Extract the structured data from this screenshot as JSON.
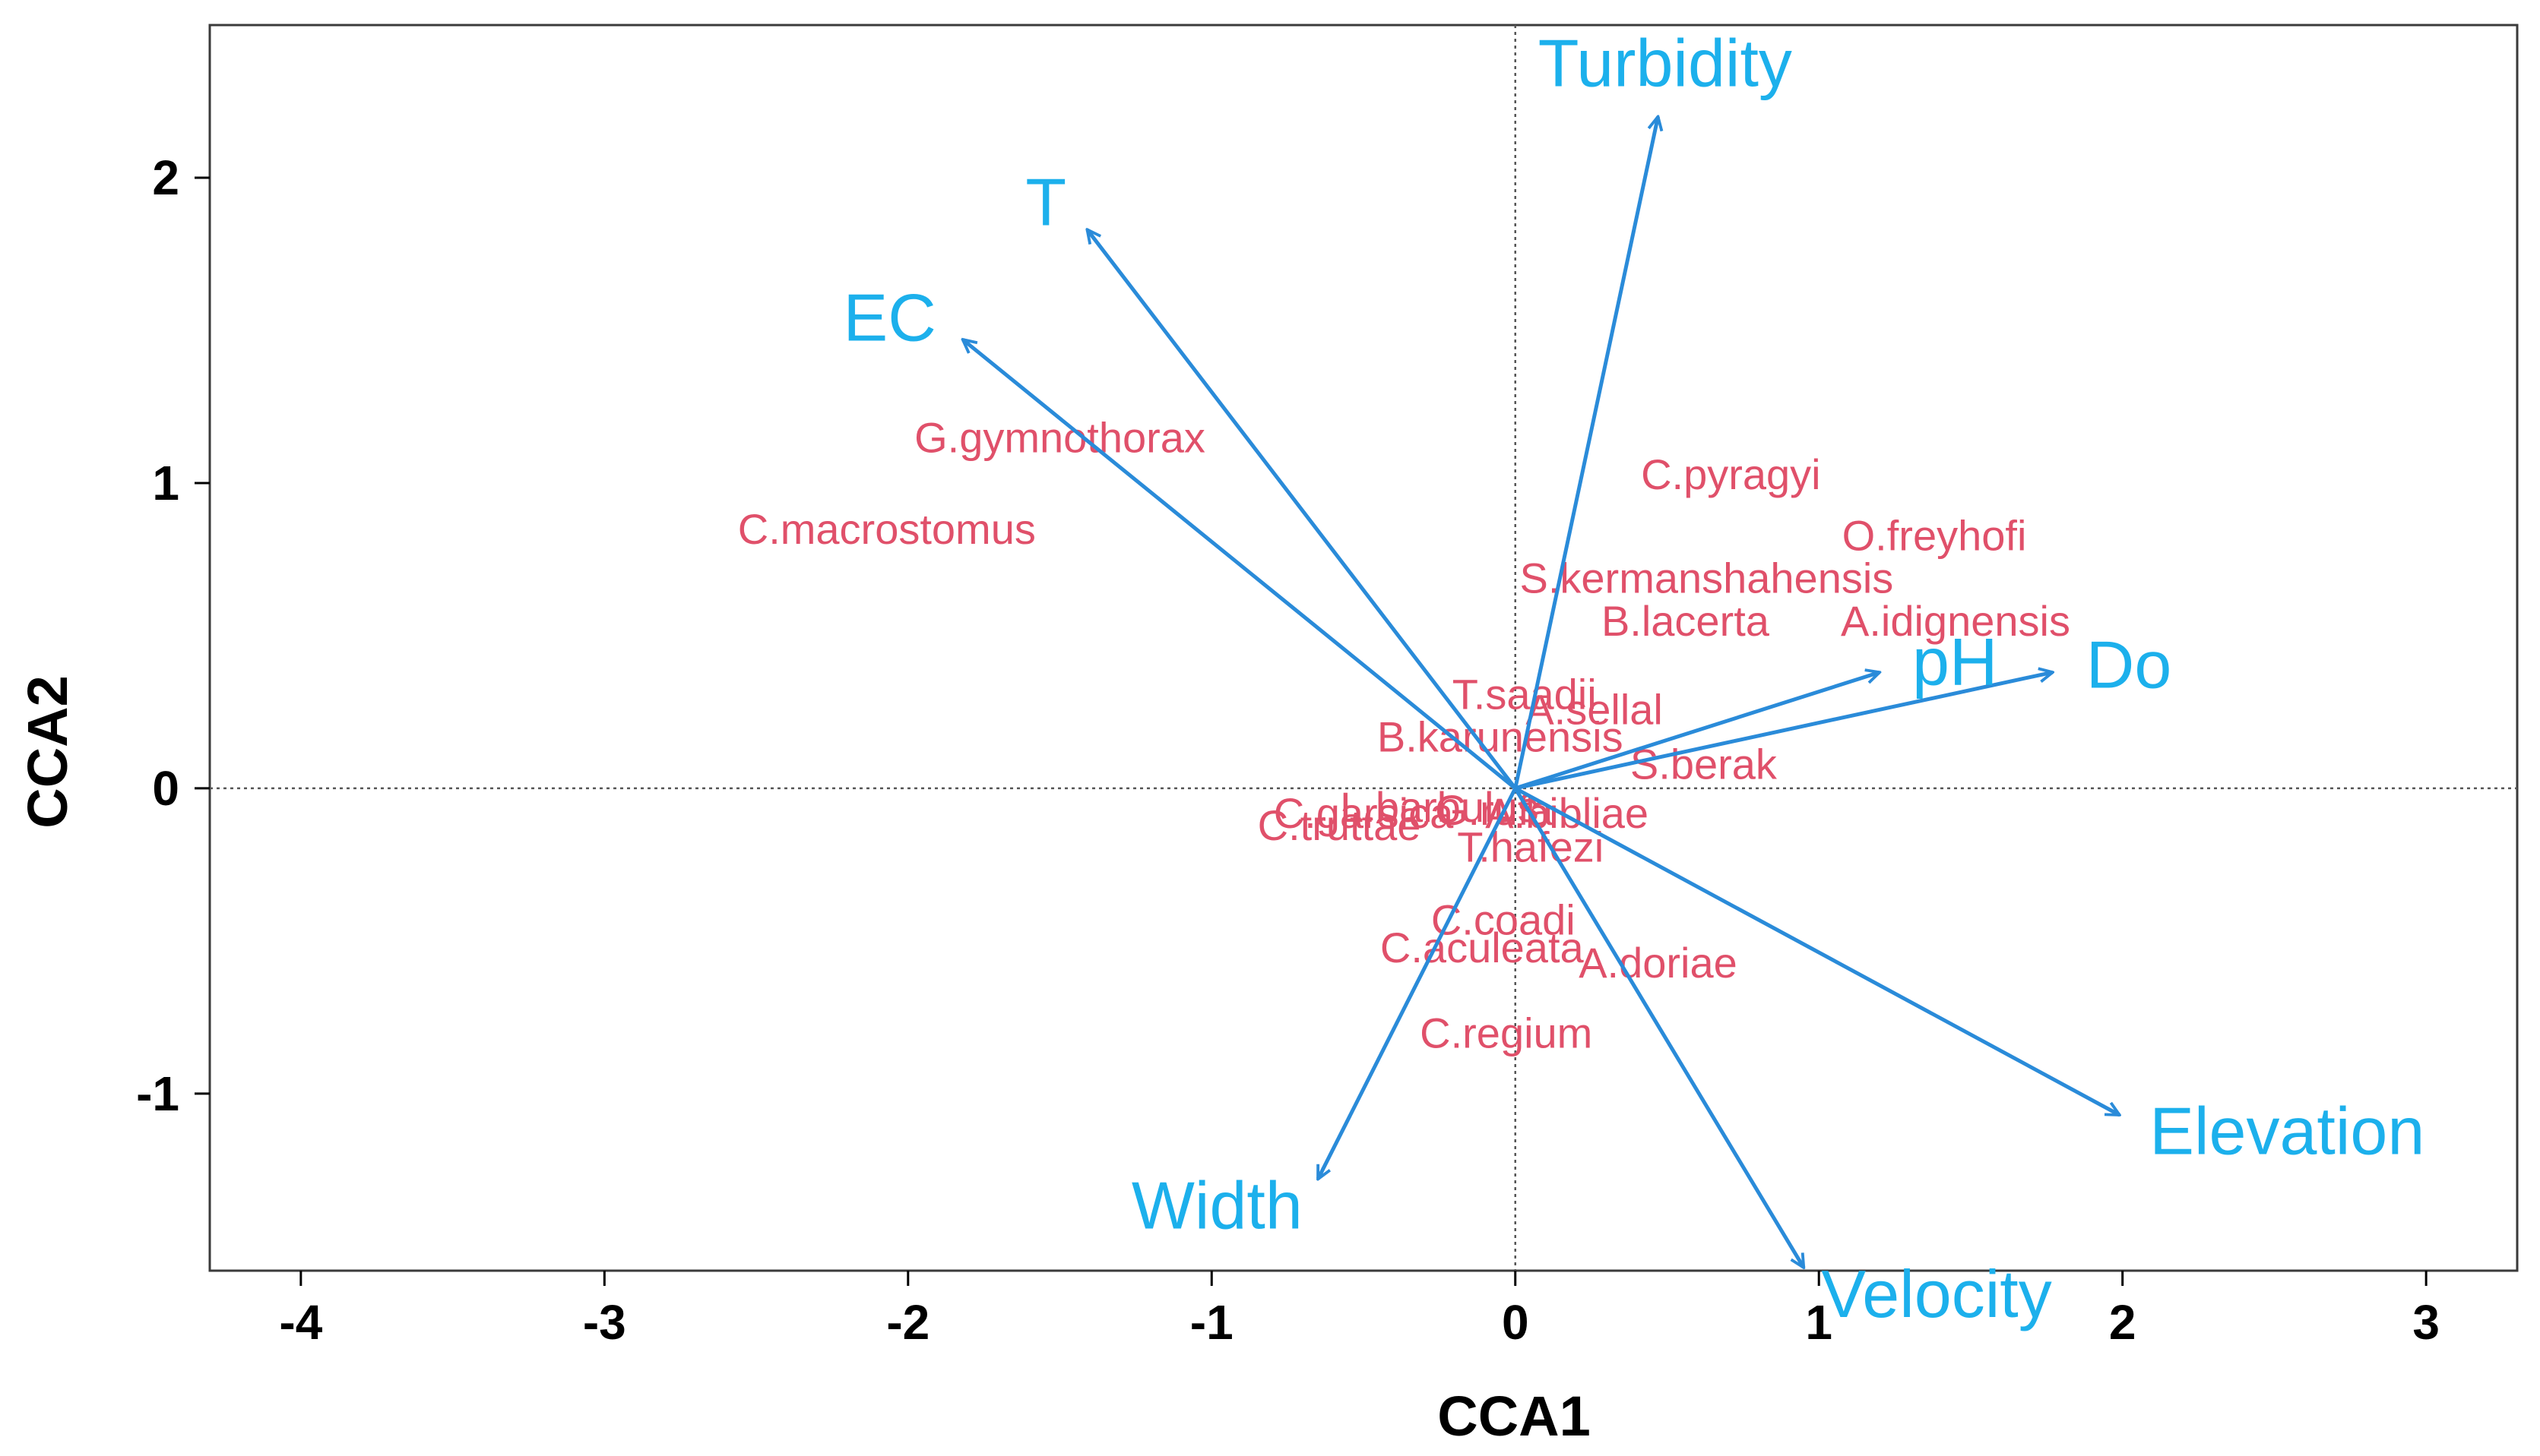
{
  "chart_data": {
    "type": "scatter",
    "title": "",
    "xlabel": "CCA1",
    "ylabel": "CCA2",
    "xlim": [
      -4.3,
      3.3
    ],
    "ylim": [
      -1.58,
      2.5
    ],
    "xticks": [
      -4,
      -3,
      -2,
      -1,
      0,
      1,
      2,
      3
    ],
    "yticks": [
      -1,
      0,
      1,
      2
    ],
    "ref_lines": {
      "x": 0,
      "y": 0,
      "style": "dotted"
    },
    "colors": {
      "arrow": "#2a8bd9",
      "env_text": "#1cb0ec",
      "species_text": "#e0506a",
      "axis": "#000000"
    },
    "environmental_vectors": [
      {
        "name": "Turbidity",
        "x": 0.47,
        "y": 2.2
      },
      {
        "name": "T",
        "x": -1.41,
        "y": 1.83
      },
      {
        "name": "EC",
        "x": -1.82,
        "y": 1.47
      },
      {
        "name": "pH",
        "x": 1.2,
        "y": 0.38
      },
      {
        "name": "Do",
        "x": 1.77,
        "y": 0.38
      },
      {
        "name": "Elevation",
        "x": 1.99,
        "y": -1.07
      },
      {
        "name": "Velocity",
        "x": 0.95,
        "y": -1.57
      },
      {
        "name": "Width",
        "x": -0.65,
        "y": -1.28
      }
    ],
    "species": [
      {
        "name": "G.gymnothorax",
        "x": -1.5,
        "y": 1.15
      },
      {
        "name": "C.macrostomus",
        "x": -2.07,
        "y": 0.85
      },
      {
        "name": "C.pyragyi",
        "x": 0.71,
        "y": 1.03
      },
      {
        "name": "O.freyhofi",
        "x": 1.38,
        "y": 0.83
      },
      {
        "name": "S.kermanshahensis",
        "x": 0.63,
        "y": 0.69
      },
      {
        "name": "B.lacerta",
        "x": 0.56,
        "y": 0.55
      },
      {
        "name": "A.idignensis",
        "x": 1.45,
        "y": 0.55
      },
      {
        "name": "T.saadii",
        "x": 0.03,
        "y": 0.31
      },
      {
        "name": "A.sellal",
        "x": 0.26,
        "y": 0.26
      },
      {
        "name": "B.karunensis",
        "x": -0.05,
        "y": 0.17
      },
      {
        "name": "S.berak",
        "x": 0.62,
        "y": 0.08
      },
      {
        "name": "C.truttae",
        "x": -0.58,
        "y": -0.12
      },
      {
        "name": "C.garsica",
        "x": -0.5,
        "y": -0.08
      },
      {
        "name": "L.barbulus",
        "x": -0.25,
        "y": -0.06
      },
      {
        "name": "G.rufa",
        "x": -0.07,
        "y": -0.07
      },
      {
        "name": "A.bibliae",
        "x": 0.17,
        "y": -0.08
      },
      {
        "name": "T.hafezi",
        "x": 0.05,
        "y": -0.19
      },
      {
        "name": "C.coadi",
        "x": -0.04,
        "y": -0.43
      },
      {
        "name": "C.aculeata",
        "x": -0.11,
        "y": -0.52
      },
      {
        "name": "A.doriae",
        "x": 0.47,
        "y": -0.57
      },
      {
        "name": "C.regium",
        "x": -0.03,
        "y": -0.8
      }
    ]
  }
}
